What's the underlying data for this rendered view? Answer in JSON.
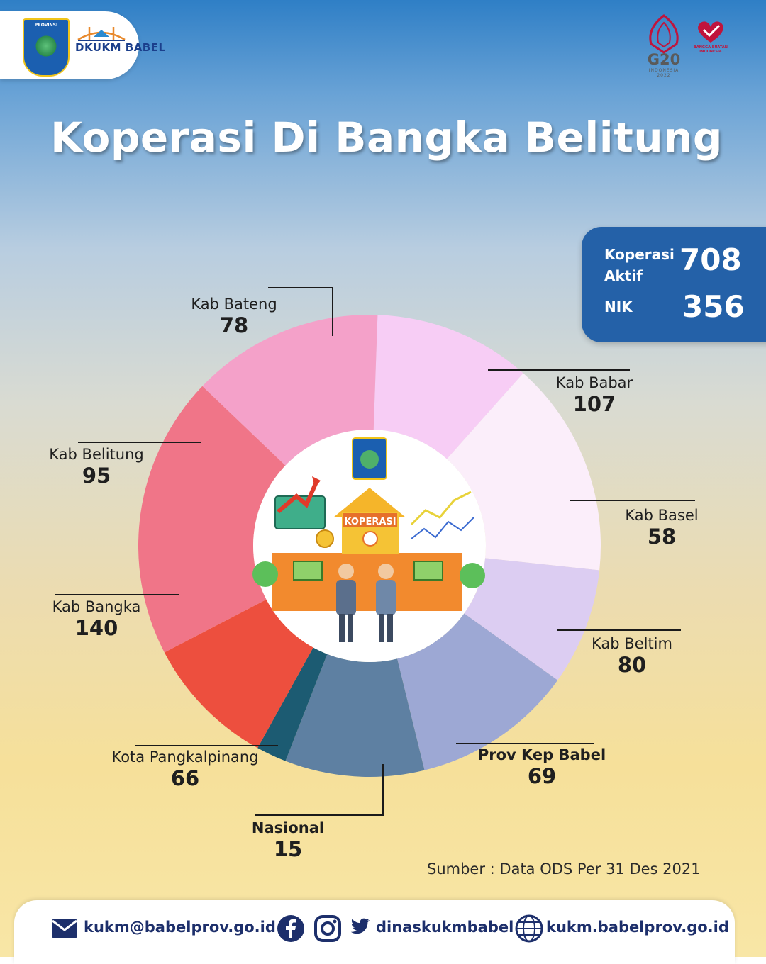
{
  "header": {
    "org_logo_text": "PROVINSI",
    "org_brand": "DKUKM BABEL",
    "g20_text": "G20",
    "g20_sub": "INDONESIA 2022",
    "bbi_text": "BANGGA BUATAN INDONESIA"
  },
  "title": "Koperasi Di Bangka Belitung",
  "stats": {
    "aktif_label_line1": "Koperasi",
    "aktif_label_line2": "Aktif",
    "aktif_value": "708",
    "nik_label": "NIK",
    "nik_value": "356"
  },
  "center_image": {
    "sign_text": "KOPERASI"
  },
  "chart_data": {
    "type": "pie",
    "style": "donut",
    "categories": [
      "Kab Bateng",
      "Kab Babar",
      "Kab Basel",
      "Kab Beltim",
      "Prov Kep Babel",
      "Nasional",
      "Kota Pangkalpinang",
      "Kab Bangka",
      "Kab Belitung"
    ],
    "values": [
      78,
      107,
      58,
      80,
      69,
      15,
      66,
      140,
      95
    ],
    "value_labels": [
      "78",
      "107",
      "58",
      "80",
      "69",
      "15",
      "66",
      "140",
      "95"
    ],
    "colors": [
      "#f7cdf5",
      "#fbeefa",
      "#dccdf2",
      "#9da8d4",
      "#5e80a2",
      "#1c5b72",
      "#ed4f3e",
      "#f07588",
      "#f4a1c9"
    ],
    "title": "Koperasi Di Bangka Belitung"
  },
  "source": "Sumber : Data ODS Per 31 Des 2021",
  "footer": {
    "email": "kukm@babelprov.go.id",
    "social": "dinaskukmbabel",
    "website": "kukm.babelprov.go.id",
    "email_icon": "mail-icon",
    "facebook_icon": "facebook-icon",
    "instagram_icon": "instagram-icon",
    "twitter_icon": "twitter-icon",
    "web_icon": "globe-icon"
  }
}
